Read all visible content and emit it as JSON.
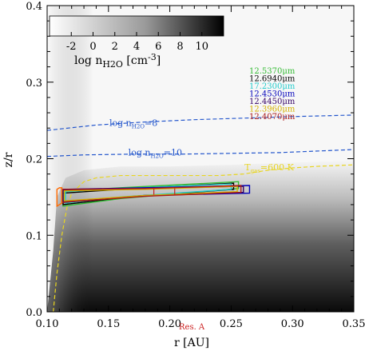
{
  "chart_data": {
    "type": "heatmap",
    "xlabel": "r [AU]",
    "ylabel": "z/r",
    "xlim": [
      0.1,
      0.35
    ],
    "ylim": [
      0.0,
      0.4
    ],
    "xticks": [
      "0.10",
      "0.15",
      "0.20",
      "0.25",
      "0.30",
      "0.35"
    ],
    "yticks": [
      "0.0",
      "0.1",
      "0.2",
      "0.3",
      "0.4"
    ],
    "colorbar": {
      "label": "log n",
      "label_sub": "H2O",
      "label_unit": " [cm",
      "label_exp": "-3",
      "label_close": "]",
      "ticks": [
        "-2",
        "0",
        "2",
        "4",
        "6",
        "8",
        "10"
      ],
      "range": [
        -4,
        12
      ],
      "colors": [
        "#ffffff",
        "#000000"
      ]
    },
    "contours": [
      {
        "label_pre": "log n",
        "label_sub": "H2O",
        "label_post": "=8",
        "color": "#2255cc",
        "r": [
          0.1,
          0.14,
          0.18,
          0.22,
          0.26,
          0.3,
          0.35
        ],
        "z": [
          0.237,
          0.244,
          0.248,
          0.251,
          0.253,
          0.255,
          0.257
        ]
      },
      {
        "label_pre": "log n",
        "label_sub": "H2O",
        "label_post": "=10",
        "color": "#2255cc",
        "r": [
          0.1,
          0.13,
          0.17,
          0.21,
          0.25,
          0.29,
          0.35
        ],
        "z": [
          0.203,
          0.205,
          0.206,
          0.206,
          0.207,
          0.208,
          0.212
        ]
      },
      {
        "label_pre": "T",
        "label_sub": "gas",
        "label_post": "=600 K",
        "color": "#e8d520",
        "r": [
          0.105,
          0.108,
          0.112,
          0.116,
          0.12,
          0.13,
          0.14,
          0.16,
          0.19,
          0.22,
          0.24,
          0.26,
          0.28,
          0.3,
          0.32,
          0.35
        ],
        "z": [
          0.0,
          0.05,
          0.1,
          0.135,
          0.155,
          0.17,
          0.175,
          0.178,
          0.178,
          0.178,
          0.178,
          0.18,
          0.185,
          0.188,
          0.19,
          0.192
        ]
      }
    ],
    "series": [
      {
        "name": "12.5370μm",
        "color": "#33bb33",
        "r": [
          0.113,
          0.16,
          0.256
        ],
        "zlow": [
          0.138,
          0.148,
          0.161
        ],
        "zhigh": [
          0.158,
          0.162,
          0.17
        ]
      },
      {
        "name": "12.6940μm",
        "color": "#000000",
        "r": [
          0.113,
          0.16,
          0.252
        ],
        "zlow": [
          0.14,
          0.149,
          0.16
        ],
        "zhigh": [
          0.155,
          0.16,
          0.168
        ]
      },
      {
        "name": "17.2300μm",
        "color": "#22cccc",
        "r": [
          0.115,
          0.16,
          0.25
        ],
        "zlow": [
          0.142,
          0.15,
          0.16
        ],
        "zhigh": [
          0.157,
          0.161,
          0.167
        ]
      },
      {
        "name": "12.4530μm",
        "color": "#0000bb",
        "r": [
          0.113,
          0.18,
          0.265
        ],
        "zlow": [
          0.143,
          0.152,
          0.155
        ],
        "zhigh": [
          0.16,
          0.162,
          0.165
        ]
      },
      {
        "name": "12.4450μm",
        "color": "#330066",
        "r": [
          0.113,
          0.18,
          0.26
        ],
        "zlow": [
          0.144,
          0.152,
          0.156
        ],
        "zhigh": [
          0.159,
          0.161,
          0.164
        ]
      },
      {
        "name": "12.3960μm",
        "color": "#d4b000",
        "r": [
          0.114,
          0.18,
          0.255
        ],
        "zlow": [
          0.145,
          0.152,
          0.157
        ],
        "zhigh": [
          0.158,
          0.16,
          0.164
        ]
      },
      {
        "name": "12.4070μm",
        "color": "#aa1a1a",
        "r": [
          0.112,
          0.18,
          0.258
        ],
        "zlow": [
          0.143,
          0.151,
          0.156
        ],
        "zhigh": [
          0.16,
          0.161,
          0.165
        ]
      },
      {
        "name": "",
        "color": "#ff6a00",
        "r": [
          0.108,
          0.11,
          0.112
        ],
        "zlow": [
          0.138,
          0.14,
          0.142
        ],
        "zhigh": [
          0.16,
          0.162,
          0.162
        ]
      }
    ],
    "markers": [
      {
        "r": 0.187,
        "z": 0.157,
        "color": "#cc2222"
      },
      {
        "r": 0.204,
        "z": 0.157,
        "color": "#cc2222"
      }
    ],
    "annotation": "Res. A"
  },
  "colors": {
    "line_blue": "#2255cc",
    "line_yellow": "#e8d520",
    "annotation": "#cc2222"
  }
}
